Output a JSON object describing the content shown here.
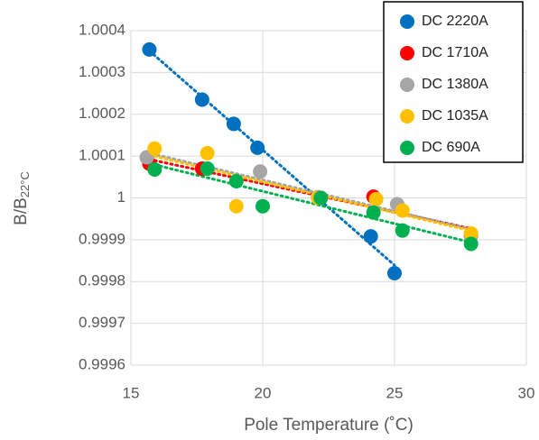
{
  "chart_data": {
    "type": "scatter",
    "xlabel": "Pole Temperature (˚C)",
    "ylabel": "B/B",
    "ylabel_sub": "22°C",
    "xlim": [
      15,
      30
    ],
    "xticks": [
      15,
      20,
      25,
      30
    ],
    "ylim": [
      0.9996,
      1.0004
    ],
    "yticks": [
      0.9996,
      0.9997,
      0.9998,
      0.9999,
      1,
      1.0001,
      1.0002,
      1.0003,
      1.0004
    ],
    "grid": true,
    "trendline": true,
    "legend": "upper right",
    "series": [
      {
        "name": "DC 2220A",
        "color": "#0070c0",
        "x": [
          15.7,
          17.7,
          18.9,
          19.8,
          22.2,
          24.1,
          25.0
        ],
        "values": [
          1.000355,
          1.000235,
          1.000177,
          1.00012,
          1.0,
          0.999908,
          0.99982
        ]
      },
      {
        "name": "DC 1710A",
        "color": "#ff0000",
        "x": [
          15.7,
          17.7,
          22.2,
          24.2,
          27.9
        ],
        "values": [
          1.000082,
          1.00007,
          1.0,
          1.000003,
          0.99991
        ]
      },
      {
        "name": "DC 1380A",
        "color": "#a5a5a5",
        "x": [
          15.6,
          19.9,
          22.1,
          25.1,
          27.9
        ],
        "values": [
          1.000097,
          1.000063,
          1.000002,
          0.999985,
          0.99991
        ]
      },
      {
        "name": "DC 1035A",
        "color": "#ffc000",
        "x": [
          15.9,
          17.9,
          19.0,
          22.1,
          24.3,
          25.3,
          27.9
        ],
        "values": [
          1.000118,
          1.000107,
          0.99998,
          1.0,
          0.999997,
          0.99997,
          0.999915
        ]
      },
      {
        "name": "DC 690A",
        "color": "#00b050",
        "x": [
          15.9,
          17.9,
          19.0,
          20.0,
          22.2,
          24.2,
          25.3,
          27.9
        ],
        "values": [
          1.000068,
          1.00007,
          1.00004,
          0.99998,
          1.0,
          0.999965,
          0.999922,
          0.99989
        ]
      }
    ]
  }
}
